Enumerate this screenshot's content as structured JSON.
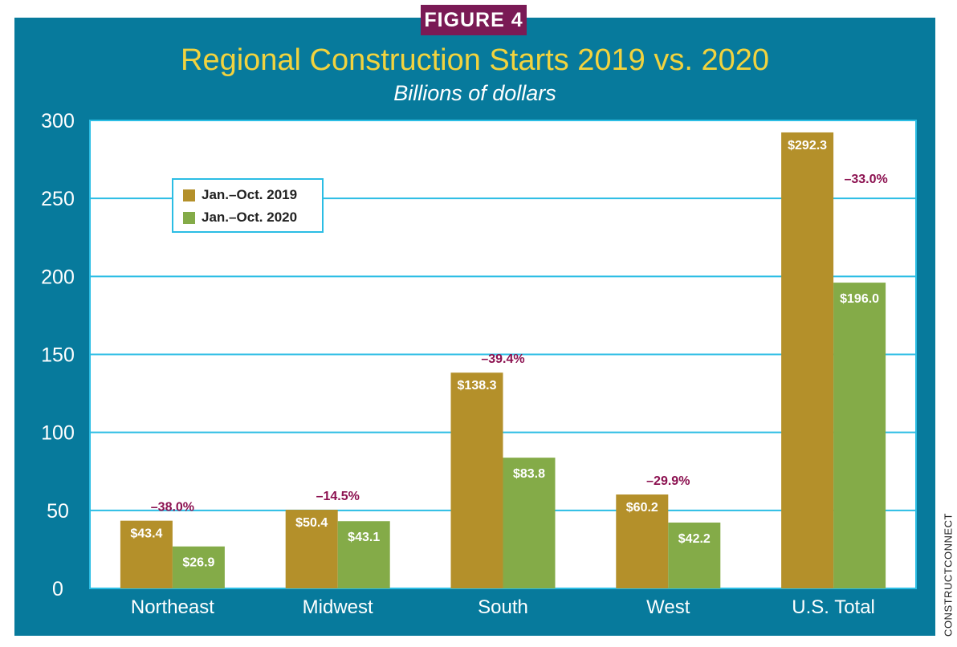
{
  "figure_label": "FIGURE 4",
  "credit": "CONSTRUCTCONNECT",
  "colors": {
    "frame": "#077a9c",
    "series_2019": "#b4902a",
    "series_2020": "#84ab48",
    "change_label": "#8c1150",
    "title": "#f2d33e",
    "grid": "#2bbde4"
  },
  "chart_data": {
    "type": "bar",
    "title": "Regional Construction Starts 2019 vs. 2020",
    "subtitle": "Billions of dollars",
    "xlabel": "",
    "ylabel": "",
    "ylim": [
      0,
      300
    ],
    "yticks": [
      "0",
      "50",
      "100",
      "150",
      "200",
      "250",
      "300"
    ],
    "grid": true,
    "legend_position": "top-left",
    "categories": [
      "Northeast",
      "Midwest",
      "South",
      "West",
      "U.S. Total"
    ],
    "series": [
      {
        "name": "Jan.–Oct. 2019",
        "values": [
          43.4,
          50.4,
          138.3,
          60.2,
          292.3
        ],
        "labels": [
          "$43.4",
          "$50.4",
          "$138.3",
          "$60.2",
          "$292.3"
        ]
      },
      {
        "name": "Jan.–Oct. 2020",
        "values": [
          26.9,
          43.1,
          83.8,
          42.2,
          196.0
        ],
        "labels": [
          "$26.9",
          "$43.1",
          "$83.8",
          "$42.2",
          "$196.0"
        ]
      }
    ],
    "changes": [
      "–38.0%",
      "–14.5%",
      "–39.4%",
      "–29.9%",
      "–33.0%"
    ]
  }
}
